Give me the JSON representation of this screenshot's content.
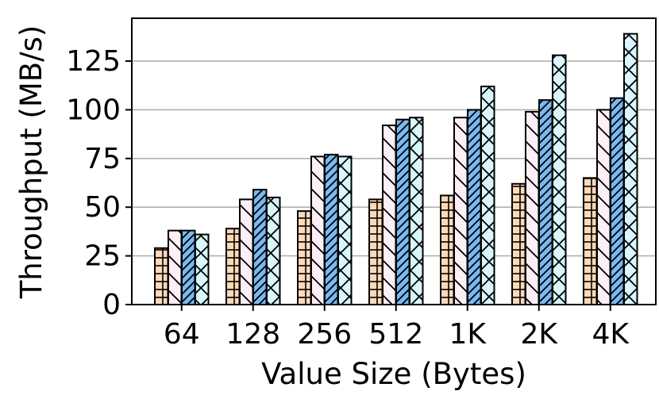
{
  "chart_data": {
    "type": "bar",
    "title": "",
    "xlabel": "Value Size (Bytes)",
    "ylabel": "Throughput (MB/s)",
    "categories": [
      "64",
      "128",
      "256",
      "512",
      "1K",
      "2K",
      "4K"
    ],
    "ylim": [
      0,
      147
    ],
    "yticks": [
      0,
      25,
      50,
      75,
      100,
      125
    ],
    "grid": "horizontal",
    "legend": "none",
    "series": [
      {
        "values": [
          29,
          39,
          48,
          54,
          56,
          62,
          65
        ],
        "fill": "#ffd8b8",
        "hatch": "horizontal"
      },
      {
        "values": [
          38,
          54,
          76,
          92,
          96,
          99,
          100
        ],
        "fill": "#fdeff5",
        "hatch": "backslash"
      },
      {
        "values": [
          38,
          59,
          77,
          95,
          100,
          105,
          106
        ],
        "fill": "#7ab9f0",
        "hatch": "slash"
      },
      {
        "values": [
          36,
          55,
          76,
          96,
          112,
          128,
          139
        ],
        "fill": "#d8f6fb",
        "hatch": "cross"
      }
    ]
  }
}
